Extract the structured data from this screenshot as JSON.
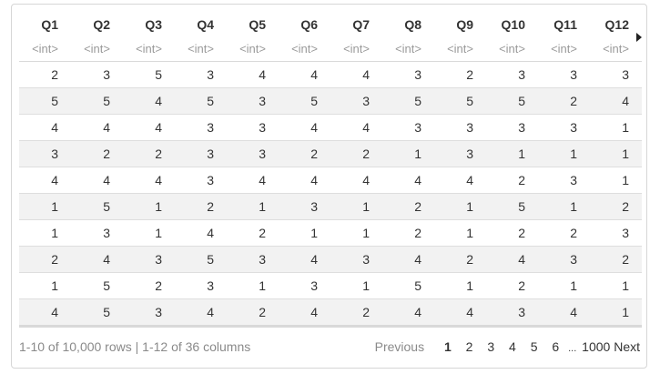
{
  "table": {
    "columns": [
      "Q1",
      "Q2",
      "Q3",
      "Q4",
      "Q5",
      "Q6",
      "Q7",
      "Q8",
      "Q9",
      "Q10",
      "Q11",
      "Q12"
    ],
    "type_label": "<int>",
    "rows": [
      [
        "2",
        "3",
        "5",
        "3",
        "4",
        "4",
        "4",
        "3",
        "2",
        "3",
        "3",
        "3"
      ],
      [
        "5",
        "5",
        "4",
        "5",
        "3",
        "5",
        "3",
        "5",
        "5",
        "5",
        "2",
        "4"
      ],
      [
        "4",
        "4",
        "4",
        "3",
        "3",
        "4",
        "4",
        "3",
        "3",
        "3",
        "3",
        "1"
      ],
      [
        "3",
        "2",
        "2",
        "3",
        "3",
        "2",
        "2",
        "1",
        "3",
        "1",
        "1",
        "1"
      ],
      [
        "4",
        "4",
        "4",
        "3",
        "4",
        "4",
        "4",
        "4",
        "4",
        "2",
        "3",
        "1"
      ],
      [
        "1",
        "5",
        "1",
        "2",
        "1",
        "3",
        "1",
        "2",
        "1",
        "5",
        "1",
        "2"
      ],
      [
        "1",
        "3",
        "1",
        "4",
        "2",
        "1",
        "1",
        "2",
        "1",
        "2",
        "2",
        "3"
      ],
      [
        "2",
        "4",
        "3",
        "5",
        "3",
        "4",
        "3",
        "4",
        "2",
        "4",
        "3",
        "2"
      ],
      [
        "1",
        "5",
        "2",
        "3",
        "1",
        "3",
        "1",
        "5",
        "1",
        "2",
        "1",
        "1"
      ],
      [
        "4",
        "5",
        "3",
        "4",
        "2",
        "4",
        "2",
        "4",
        "4",
        "3",
        "4",
        "1"
      ]
    ]
  },
  "footer": {
    "info": "1-10 of 10,000 rows | 1-12 of 36 columns",
    "previous": "Previous",
    "pages": [
      "1",
      "2",
      "3",
      "4",
      "5",
      "6"
    ],
    "current_page": "1",
    "ellipsis": "...",
    "last_page": "1000",
    "next": "Next"
  },
  "icons": {
    "scroll_right": "triangle-right-icon"
  }
}
